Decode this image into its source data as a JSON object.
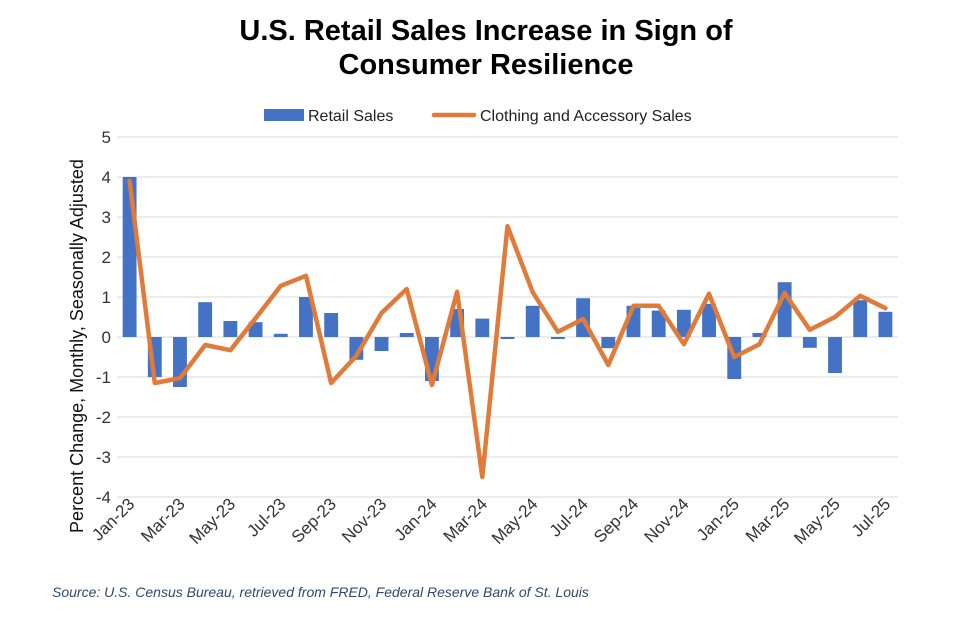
{
  "chart_data": {
    "type": "bar+line",
    "title_lines": [
      "U.S. Retail Sales Increase in Sign of",
      "Consumer Resilience"
    ],
    "ylabel": "Percent Change, Monthly, Seasonally Adjusted",
    "xlabel": "",
    "ylim": [
      -4,
      5
    ],
    "yticks": [
      5,
      4,
      3,
      2,
      1,
      0,
      -1,
      -2,
      -3,
      -4
    ],
    "grid": true,
    "legend": "top-center",
    "categories": [
      "Jan-23",
      "Feb-23",
      "Mar-23",
      "Apr-23",
      "May-23",
      "Jun-23",
      "Jul-23",
      "Aug-23",
      "Sep-23",
      "Oct-23",
      "Nov-23",
      "Dec-23",
      "Jan-24",
      "Feb-24",
      "Mar-24",
      "Apr-24",
      "May-24",
      "Jun-24",
      "Jul-24",
      "Aug-24",
      "Sep-24",
      "Oct-24",
      "Nov-24",
      "Dec-24",
      "Jan-25",
      "Feb-25",
      "Mar-25",
      "Apr-25",
      "May-25",
      "Jun-25",
      "Jul-25"
    ],
    "tick_labels": [
      "Jan-23",
      "Mar-23",
      "May-23",
      "Jul-23",
      "Sep-23",
      "Nov-23",
      "Jan-24",
      "Mar-24",
      "May-24",
      "Jul-24",
      "Sep-24",
      "Nov-24",
      "Jan-25",
      "Mar-25",
      "May-25",
      "Jul-25"
    ],
    "series": [
      {
        "name": "Retail Sales",
        "type": "bar",
        "color": "#4472C4",
        "values": [
          4.0,
          -1.0,
          -1.25,
          0.87,
          0.4,
          0.37,
          0.08,
          1.0,
          0.6,
          -0.57,
          -0.35,
          0.1,
          -1.1,
          0.7,
          0.46,
          -0.05,
          0.78,
          -0.05,
          0.97,
          -0.28,
          0.78,
          0.66,
          0.68,
          0.83,
          -1.05,
          0.1,
          1.37,
          -0.27,
          -0.9,
          0.92,
          0.63
        ]
      },
      {
        "name": "Clothing and Accessory Sales",
        "type": "line",
        "color": "#E07B39",
        "values": [
          3.9,
          -1.15,
          -1.03,
          -0.2,
          -0.33,
          0.47,
          1.28,
          1.53,
          -1.15,
          -0.47,
          0.6,
          1.2,
          -1.2,
          1.13,
          -3.5,
          2.77,
          1.12,
          0.13,
          0.45,
          -0.7,
          0.78,
          0.78,
          -0.18,
          1.08,
          -0.5,
          -0.18,
          1.1,
          0.18,
          0.5,
          1.03,
          0.72
        ]
      }
    ]
  },
  "source": "Source: U.S. Census Bureau, retrieved from FRED, Federal Reserve Bank of St. Louis"
}
